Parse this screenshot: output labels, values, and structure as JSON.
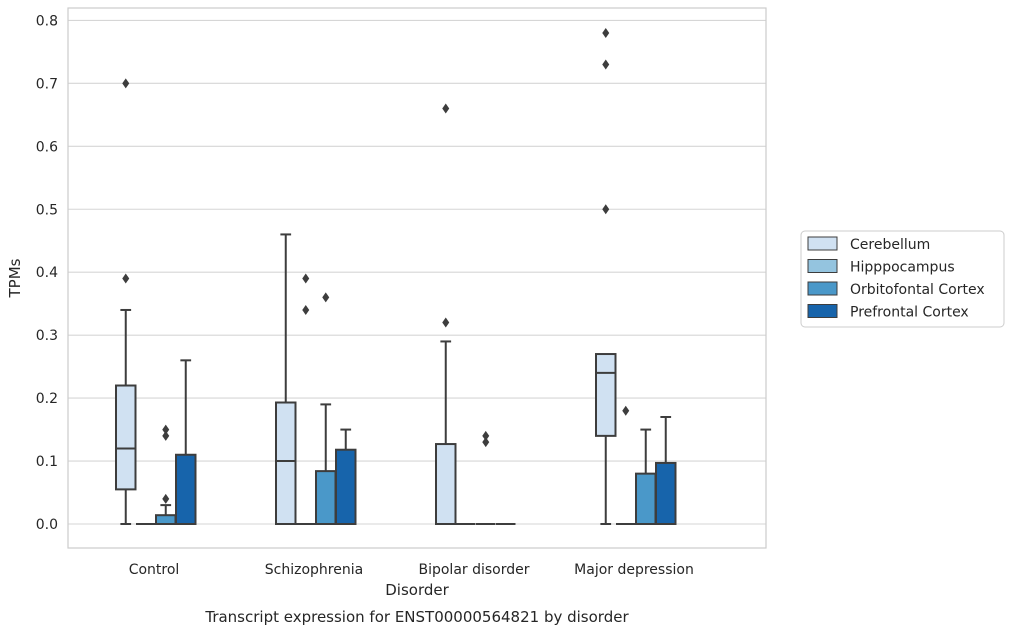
{
  "chart_data": {
    "type": "box",
    "title": "Transcript expression for ENST00000564821 by disorder",
    "xlabel": "Disorder",
    "ylabel": "TPMs",
    "ylim": [
      -0.04,
      0.82
    ],
    "yticks": [
      "0.0",
      "0.1",
      "0.2",
      "0.3",
      "0.4",
      "0.5",
      "0.6",
      "0.7",
      "0.8"
    ],
    "grid": "horizontal",
    "legend_position": "right",
    "categories": [
      "Control",
      "Schizophrenia",
      "Bipolar disorder",
      "Major depression"
    ],
    "series": [
      {
        "name": "Cerebellum",
        "color": "#d0e1f2",
        "boxes": [
          {
            "whislo": 0.0,
            "q1": 0.055,
            "med": 0.12,
            "q3": 0.22,
            "whishi": 0.34,
            "fliers": [
              0.39,
              0.7
            ]
          },
          {
            "whislo": 0.0,
            "q1": 0.0,
            "med": 0.1,
            "q3": 0.193,
            "whishi": 0.46,
            "fliers": []
          },
          {
            "whislo": 0.0,
            "q1": 0.0,
            "med": 0.0,
            "q3": 0.127,
            "whishi": 0.29,
            "fliers": [
              0.32,
              0.66
            ]
          },
          {
            "whislo": 0.0,
            "q1": 0.14,
            "med": 0.24,
            "q3": 0.27,
            "whishi": 0.27,
            "fliers": [
              0.5,
              0.73,
              0.78
            ]
          }
        ]
      },
      {
        "name": "Hipppocampus",
        "color": "#94c4df",
        "boxes": [
          {
            "whislo": 0.0,
            "q1": 0.0,
            "med": 0.0,
            "q3": 0.0,
            "whishi": 0.0,
            "fliers": []
          },
          {
            "whislo": 0.0,
            "q1": 0.0,
            "med": 0.0,
            "q3": 0.0,
            "whishi": 0.0,
            "fliers": [
              0.34,
              0.39
            ]
          },
          {
            "whislo": 0.0,
            "q1": 0.0,
            "med": 0.0,
            "q3": 0.0,
            "whishi": 0.0,
            "fliers": []
          },
          {
            "whislo": 0.0,
            "q1": 0.0,
            "med": 0.0,
            "q3": 0.0,
            "whishi": 0.0,
            "fliers": [
              0.18
            ]
          }
        ]
      },
      {
        "name": "Orbitofontal Cortex",
        "color": "#4a98c9",
        "boxes": [
          {
            "whislo": 0.0,
            "q1": 0.0,
            "med": 0.0,
            "q3": 0.014,
            "whishi": 0.03,
            "fliers": [
              0.04,
              0.14,
              0.15
            ]
          },
          {
            "whislo": 0.0,
            "q1": 0.0,
            "med": 0.0,
            "q3": 0.084,
            "whishi": 0.19,
            "fliers": [
              0.36
            ]
          },
          {
            "whislo": 0.0,
            "q1": 0.0,
            "med": 0.0,
            "q3": 0.0,
            "whishi": 0.0,
            "fliers": [
              0.13,
              0.14
            ]
          },
          {
            "whislo": 0.0,
            "q1": 0.0,
            "med": 0.0,
            "q3": 0.08,
            "whishi": 0.15,
            "fliers": []
          }
        ]
      },
      {
        "name": "Prefrontal Cortex",
        "color": "#1764ab",
        "boxes": [
          {
            "whislo": 0.0,
            "q1": 0.0,
            "med": 0.0,
            "q3": 0.11,
            "whishi": 0.26,
            "fliers": []
          },
          {
            "whislo": 0.0,
            "q1": 0.0,
            "med": 0.0,
            "q3": 0.118,
            "whishi": 0.15,
            "fliers": []
          },
          {
            "whislo": 0.0,
            "q1": 0.0,
            "med": 0.0,
            "q3": 0.0,
            "whishi": 0.0,
            "fliers": []
          },
          {
            "whislo": 0.0,
            "q1": 0.0,
            "med": 0.0,
            "q3": 0.097,
            "whishi": 0.17,
            "fliers": []
          }
        ]
      }
    ]
  }
}
